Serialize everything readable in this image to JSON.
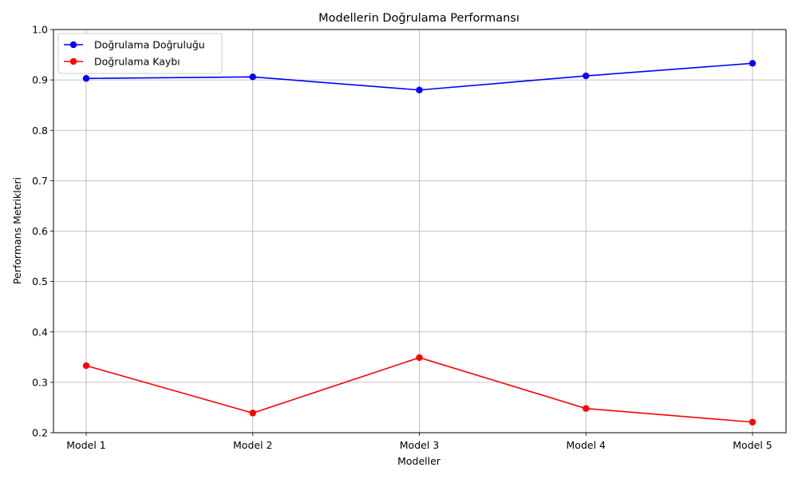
{
  "chart_data": {
    "type": "line",
    "title": "Modellerin Doğrulama Performansı",
    "xlabel": "Modeller",
    "ylabel": "Performans Metrikleri",
    "categories": [
      "Model 1",
      "Model 2",
      "Model 3",
      "Model 4",
      "Model 5"
    ],
    "ylim": [
      0.2,
      1.0
    ],
    "yticks": [
      "0.2",
      "0.3",
      "0.4",
      "0.5",
      "0.6",
      "0.7",
      "0.8",
      "0.9",
      "1.0"
    ],
    "grid": true,
    "legend_position": "top-left",
    "series": [
      {
        "name": "Doğrulama Doğruluğu",
        "color": "#0000ff",
        "marker": "circle",
        "values": [
          0.903,
          0.906,
          0.88,
          0.908,
          0.933
        ]
      },
      {
        "name": "Doğrulama Kaybı",
        "color": "#ff0000",
        "marker": "circle",
        "values": [
          0.333,
          0.239,
          0.349,
          0.248,
          0.221
        ]
      }
    ]
  }
}
